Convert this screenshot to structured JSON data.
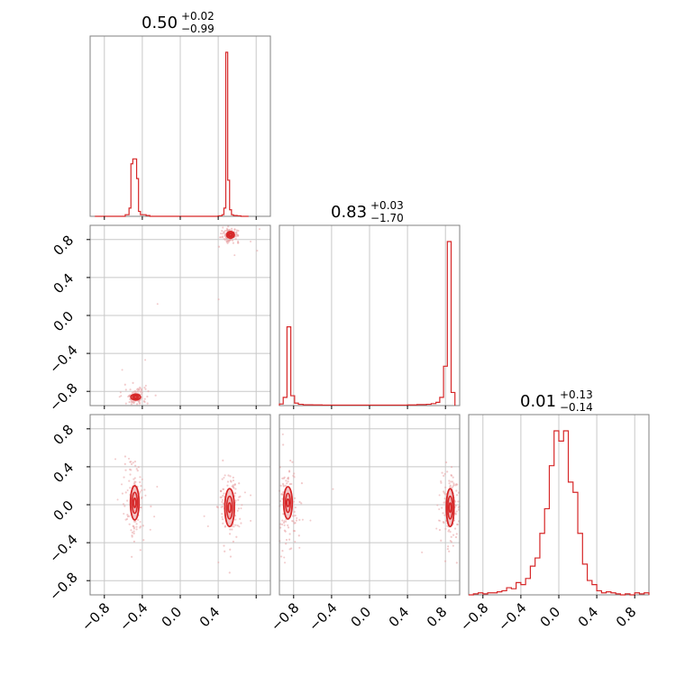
{
  "chart_data": {
    "type": "corner",
    "series_color": "#d62728",
    "grid": true,
    "axis_range": [
      -0.95,
      0.95
    ],
    "ticks": [
      -0.8,
      -0.4,
      0.0,
      0.4,
      0.8
    ],
    "tick_labels": [
      "−0.8",
      "−0.4",
      "0.0",
      "0.4",
      "0.8"
    ],
    "parameters": [
      {
        "median": "0.50",
        "plus": "+0.02",
        "minus": "−0.99",
        "xticks": [
          -0.8,
          -0.4,
          0.0,
          0.4
        ]
      },
      {
        "median": "0.83",
        "plus": "+0.03",
        "minus": "−1.70",
        "xticks": [
          -0.8,
          -0.4,
          0.0,
          0.4,
          0.8
        ]
      },
      {
        "median": "0.01",
        "plus": "+0.13",
        "minus": "−0.14",
        "xticks": [
          -0.8,
          -0.4,
          0.0,
          0.4,
          0.8
        ]
      }
    ],
    "histograms": [
      {
        "param": 0,
        "bin_edges": [
          -0.9,
          -0.86,
          -0.82,
          -0.78,
          -0.74,
          -0.7,
          -0.66,
          -0.62,
          -0.58,
          -0.54,
          -0.52,
          -0.5,
          -0.48,
          -0.46,
          -0.44,
          -0.42,
          -0.4,
          -0.36,
          -0.32,
          -0.28,
          -0.24,
          -0.2,
          -0.16,
          -0.12,
          -0.08,
          -0.04,
          0.0,
          0.04,
          0.08,
          0.12,
          0.16,
          0.2,
          0.24,
          0.28,
          0.32,
          0.36,
          0.4,
          0.44,
          0.46,
          0.48,
          0.5,
          0.52,
          0.54,
          0.56,
          0.6,
          0.64,
          0.68,
          0.72
        ],
        "counts": [
          0,
          0,
          0,
          0,
          0,
          0,
          0,
          0,
          0.01,
          0.05,
          0.32,
          0.35,
          0.35,
          0.23,
          0.03,
          0.01,
          0.01,
          0.005,
          0,
          0,
          0,
          0,
          0,
          0,
          0,
          0,
          0,
          0,
          0,
          0,
          0,
          0,
          0,
          0,
          0,
          0,
          0.003,
          0.01,
          0.05,
          1.0,
          0.22,
          0.04,
          0.01,
          0.005,
          0.003,
          0,
          0
        ]
      },
      {
        "param": 1,
        "bin_edges": [
          -0.95,
          -0.91,
          -0.87,
          -0.83,
          -0.79,
          -0.75,
          -0.7,
          -0.6,
          -0.5,
          -0.4,
          -0.3,
          -0.2,
          -0.1,
          0.0,
          0.1,
          0.2,
          0.3,
          0.4,
          0.5,
          0.6,
          0.65,
          0.7,
          0.74,
          0.78,
          0.82,
          0.86,
          0.9
        ],
        "counts": [
          0.01,
          0.05,
          0.48,
          0.06,
          0.015,
          0.008,
          0.005,
          0.004,
          0.003,
          0.003,
          0.003,
          0.003,
          0.003,
          0.003,
          0.003,
          0.003,
          0.003,
          0.004,
          0.006,
          0.008,
          0.012,
          0.02,
          0.05,
          0.24,
          1.0,
          0.08
        ]
      },
      {
        "param": 2,
        "bin_edges": [
          -0.95,
          -0.9,
          -0.85,
          -0.8,
          -0.75,
          -0.7,
          -0.65,
          -0.6,
          -0.55,
          -0.5,
          -0.45,
          -0.4,
          -0.35,
          -0.3,
          -0.25,
          -0.2,
          -0.15,
          -0.1,
          -0.05,
          0.0,
          0.05,
          0.1,
          0.15,
          0.2,
          0.25,
          0.3,
          0.35,
          0.4,
          0.45,
          0.5,
          0.55,
          0.6,
          0.65,
          0.7,
          0.75,
          0.8,
          0.85,
          0.9,
          0.95
        ],
        "counts": [
          0.0,
          0.005,
          0.01,
          0.005,
          0.01,
          0.01,
          0.015,
          0.02,
          0.035,
          0.03,
          0.06,
          0.05,
          0.08,
          0.14,
          0.18,
          0.3,
          0.42,
          0.63,
          0.8,
          0.75,
          0.8,
          0.55,
          0.5,
          0.3,
          0.15,
          0.07,
          0.05,
          0.02,
          0.01,
          0.015,
          0.01,
          0.005,
          0.0,
          0.005,
          0.0,
          0.01,
          0.005,
          0.01
        ]
      }
    ],
    "pairs": [
      {
        "x_param": 0,
        "y_param": 1,
        "clusters": [
          {
            "cx": -0.47,
            "cy": -0.86,
            "sx": 0.03,
            "sy": 0.025,
            "contour_rx": [
              0.05,
              0.03,
              0.015
            ],
            "contour_ry": [
              0.03,
              0.02,
              0.01
            ]
          },
          {
            "cx": 0.53,
            "cy": 0.85,
            "sx": 0.025,
            "sy": 0.02,
            "contour_rx": [
              0.04,
              0.025,
              0.012
            ],
            "contour_ry": [
              0.035,
              0.02,
              0.01
            ]
          }
        ]
      },
      {
        "x_param": 0,
        "y_param": 2,
        "clusters": [
          {
            "cx": -0.48,
            "cy": 0.02,
            "sx": 0.03,
            "sy": 0.12,
            "contour_rx": [
              0.045,
              0.028,
              0.012
            ],
            "contour_ry": [
              0.18,
              0.11,
              0.05
            ]
          },
          {
            "cx": 0.52,
            "cy": -0.03,
            "sx": 0.03,
            "sy": 0.12,
            "contour_rx": [
              0.05,
              0.03,
              0.014
            ],
            "contour_ry": [
              0.2,
              0.12,
              0.05
            ]
          }
        ]
      },
      {
        "x_param": 1,
        "y_param": 2,
        "clusters": [
          {
            "cx": -0.86,
            "cy": 0.02,
            "sx": 0.03,
            "sy": 0.12,
            "contour_rx": [
              0.045,
              0.026,
              0.012
            ],
            "contour_ry": [
              0.17,
              0.1,
              0.04
            ]
          },
          {
            "cx": 0.85,
            "cy": -0.03,
            "sx": 0.025,
            "sy": 0.12,
            "contour_rx": [
              0.04,
              0.025,
              0.011
            ],
            "contour_ry": [
              0.2,
              0.12,
              0.05
            ]
          }
        ]
      }
    ]
  }
}
